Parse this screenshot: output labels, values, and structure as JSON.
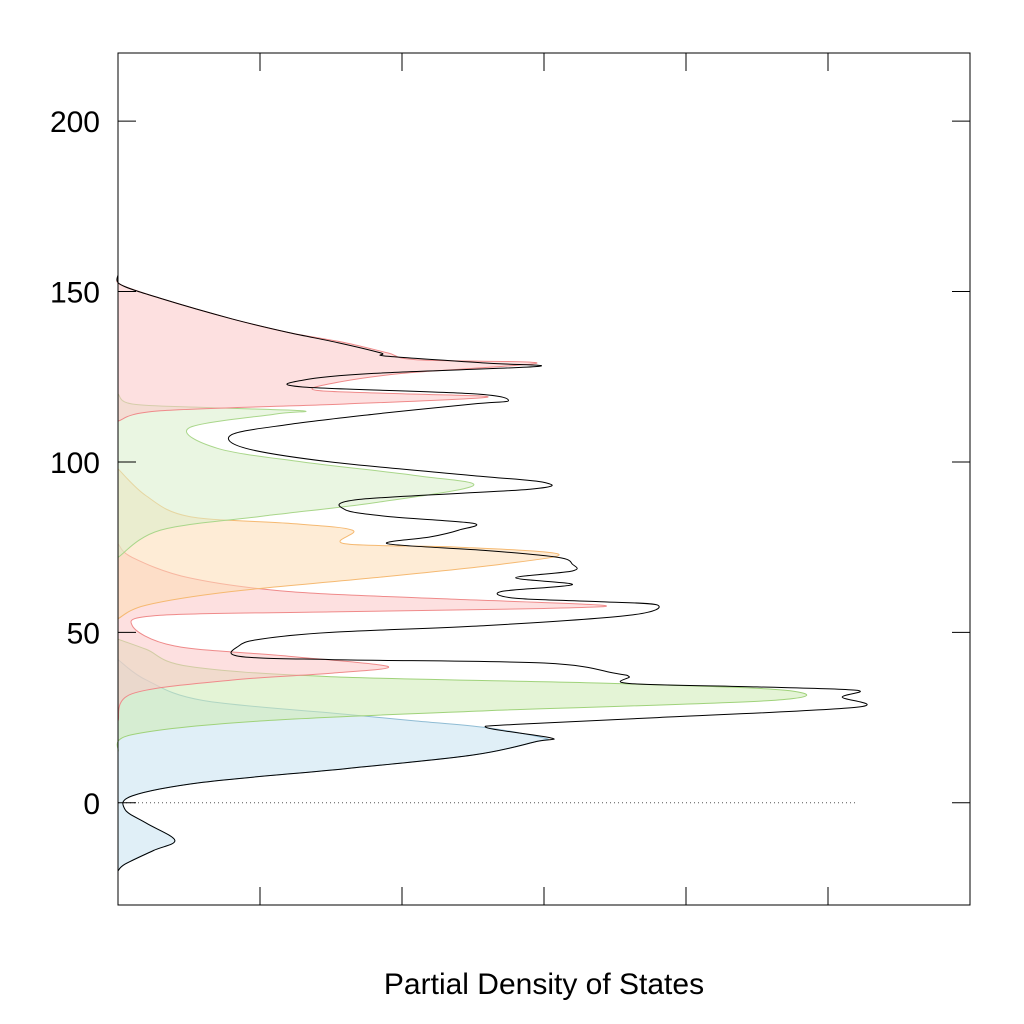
{
  "chart_data": {
    "type": "area",
    "orientation": "horizontal",
    "title": "",
    "xlabel": "Partial Density of States",
    "ylabel": "",
    "xlim": [
      0,
      6
    ],
    "ylim": [
      -30,
      220
    ],
    "yticks": [
      0,
      50,
      100,
      150,
      200
    ],
    "ytick_labels": [
      "0",
      "50",
      "100",
      "150",
      "200"
    ],
    "xticks": [
      1,
      2,
      3,
      4,
      5
    ],
    "grid": false,
    "zero_line": true,
    "series": [
      {
        "color": "#c6e2f0",
        "edge": "#8fbcd4",
        "points": [
          [
            0,
            -20
          ],
          [
            0.05,
            -18
          ],
          [
            0.25,
            -14
          ],
          [
            0.4,
            -11
          ],
          [
            0.2,
            -6
          ],
          [
            0.05,
            -2
          ],
          [
            0.1,
            2
          ],
          [
            0.6,
            6
          ],
          [
            1.6,
            10
          ],
          [
            2.5,
            14
          ],
          [
            2.95,
            18
          ],
          [
            3,
            19
          ],
          [
            2.6,
            22
          ],
          [
            2.1,
            24
          ],
          [
            1.6,
            26
          ],
          [
            0.6,
            30
          ],
          [
            0.2,
            36
          ],
          [
            0,
            42
          ]
        ]
      },
      {
        "color": "#cdebb4",
        "edge": "#9fd27a",
        "points": [
          [
            0,
            15
          ],
          [
            0.1,
            20
          ],
          [
            1.0,
            24
          ],
          [
            2.6,
            27
          ],
          [
            4.6,
            30
          ],
          [
            4.7,
            33
          ],
          [
            3.5,
            35
          ],
          [
            1.5,
            37
          ],
          [
            0.5,
            40
          ],
          [
            0.2,
            45
          ],
          [
            0,
            48
          ]
        ]
      },
      {
        "color": "#fcc6c6",
        "edge": "#ef8a8a",
        "points": [
          [
            0,
            24
          ],
          [
            0.1,
            32
          ],
          [
            0.8,
            36
          ],
          [
            1.5,
            38
          ],
          [
            1.9,
            40
          ],
          [
            1.2,
            43
          ],
          [
            0.4,
            46
          ],
          [
            0.1,
            52
          ],
          [
            0.3,
            55
          ],
          [
            1.5,
            56
          ],
          [
            3.0,
            57
          ],
          [
            3.4,
            58
          ],
          [
            2.2,
            60
          ],
          [
            1.2,
            62
          ],
          [
            0.5,
            66
          ],
          [
            0.1,
            72
          ],
          [
            0,
            76
          ]
        ]
      },
      {
        "color": "#fddcb4",
        "edge": "#f5b971",
        "points": [
          [
            0,
            54
          ],
          [
            0.2,
            58
          ],
          [
            0.8,
            62
          ],
          [
            1.8,
            66
          ],
          [
            2.7,
            70
          ],
          [
            3.1,
            73
          ],
          [
            2.4,
            75
          ],
          [
            1.6,
            76
          ],
          [
            1.65,
            80
          ],
          [
            1.2,
            82
          ],
          [
            0.5,
            84
          ],
          [
            0.2,
            90
          ],
          [
            0,
            98
          ]
        ]
      },
      {
        "color": "#d8eeca",
        "edge": "#a9d68a",
        "points": [
          [
            0,
            72
          ],
          [
            0.3,
            80
          ],
          [
            1.0,
            84
          ],
          [
            1.2,
            85
          ],
          [
            1.8,
            88
          ],
          [
            2.5,
            93
          ],
          [
            2.1,
            96
          ],
          [
            1.3,
            100
          ],
          [
            0.7,
            104
          ],
          [
            0.5,
            110
          ],
          [
            1.1,
            114
          ],
          [
            1.3,
            115
          ],
          [
            0.6,
            116
          ],
          [
            0.1,
            117
          ],
          [
            0,
            120
          ]
        ]
      },
      {
        "color": "#fcc6c6",
        "edge": "#ef8a8a",
        "points": [
          [
            0,
            112
          ],
          [
            0.3,
            115
          ],
          [
            1.6,
            117
          ],
          [
            2.6,
            119
          ],
          [
            2.0,
            120
          ],
          [
            1.4,
            121
          ],
          [
            1.5,
            123
          ],
          [
            2.0,
            126
          ],
          [
            2.95,
            129
          ],
          [
            2.1,
            130
          ],
          [
            1.9,
            132
          ],
          [
            1.6,
            135
          ],
          [
            1.2,
            138
          ],
          [
            0.8,
            142
          ],
          [
            0.3,
            148
          ],
          [
            0.02,
            152
          ],
          [
            0,
            154
          ]
        ]
      }
    ],
    "total": {
      "color": "#000000",
      "points": [
        [
          0,
          -20
        ],
        [
          0.05,
          -18
        ],
        [
          0.25,
          -14
        ],
        [
          0.4,
          -11
        ],
        [
          0.2,
          -6
        ],
        [
          0.05,
          -2
        ],
        [
          0.1,
          2
        ],
        [
          0.6,
          6
        ],
        [
          1.6,
          10
        ],
        [
          2.5,
          14
        ],
        [
          2.95,
          18
        ],
        [
          3.05,
          19
        ],
        [
          2.6,
          22
        ],
        [
          2.8,
          23
        ],
        [
          3.8,
          25
        ],
        [
          5.2,
          28
        ],
        [
          5.1,
          31
        ],
        [
          5.2,
          33
        ],
        [
          4.5,
          34
        ],
        [
          3.6,
          35
        ],
        [
          3.6,
          37
        ],
        [
          3.5,
          38
        ],
        [
          3.0,
          41
        ],
        [
          1.5,
          42
        ],
        [
          0.85,
          43
        ],
        [
          0.85,
          46
        ],
        [
          1.0,
          48
        ],
        [
          1.5,
          50
        ],
        [
          2.6,
          52
        ],
        [
          3.6,
          55
        ],
        [
          3.8,
          58
        ],
        [
          3.4,
          59
        ],
        [
          2.8,
          60
        ],
        [
          2.7,
          62
        ],
        [
          3.2,
          64
        ],
        [
          2.8,
          66
        ],
        [
          3.2,
          68
        ],
        [
          3.2,
          70
        ],
        [
          3.1,
          72
        ],
        [
          2.6,
          74
        ],
        [
          1.9,
          76
        ],
        [
          2.2,
          78
        ],
        [
          2.4,
          80
        ],
        [
          2.5,
          82
        ],
        [
          1.9,
          84
        ],
        [
          1.6,
          86
        ],
        [
          1.7,
          89
        ],
        [
          2.9,
          92
        ],
        [
          3.0,
          94
        ],
        [
          2.5,
          96
        ],
        [
          1.5,
          100
        ],
        [
          0.9,
          104
        ],
        [
          0.8,
          108
        ],
        [
          1.2,
          111
        ],
        [
          1.8,
          114
        ],
        [
          2.5,
          117
        ],
        [
          2.75,
          118
        ],
        [
          2.5,
          120
        ],
        [
          1.3,
          122
        ],
        [
          1.3,
          124
        ],
        [
          1.8,
          126
        ],
        [
          2.95,
          128
        ],
        [
          2.6,
          129
        ],
        [
          1.9,
          131
        ],
        [
          1.85,
          132
        ],
        [
          1.55,
          135
        ],
        [
          1.2,
          138
        ],
        [
          0.8,
          142
        ],
        [
          0.3,
          148
        ],
        [
          0.02,
          152
        ],
        [
          0,
          155
        ]
      ]
    }
  }
}
